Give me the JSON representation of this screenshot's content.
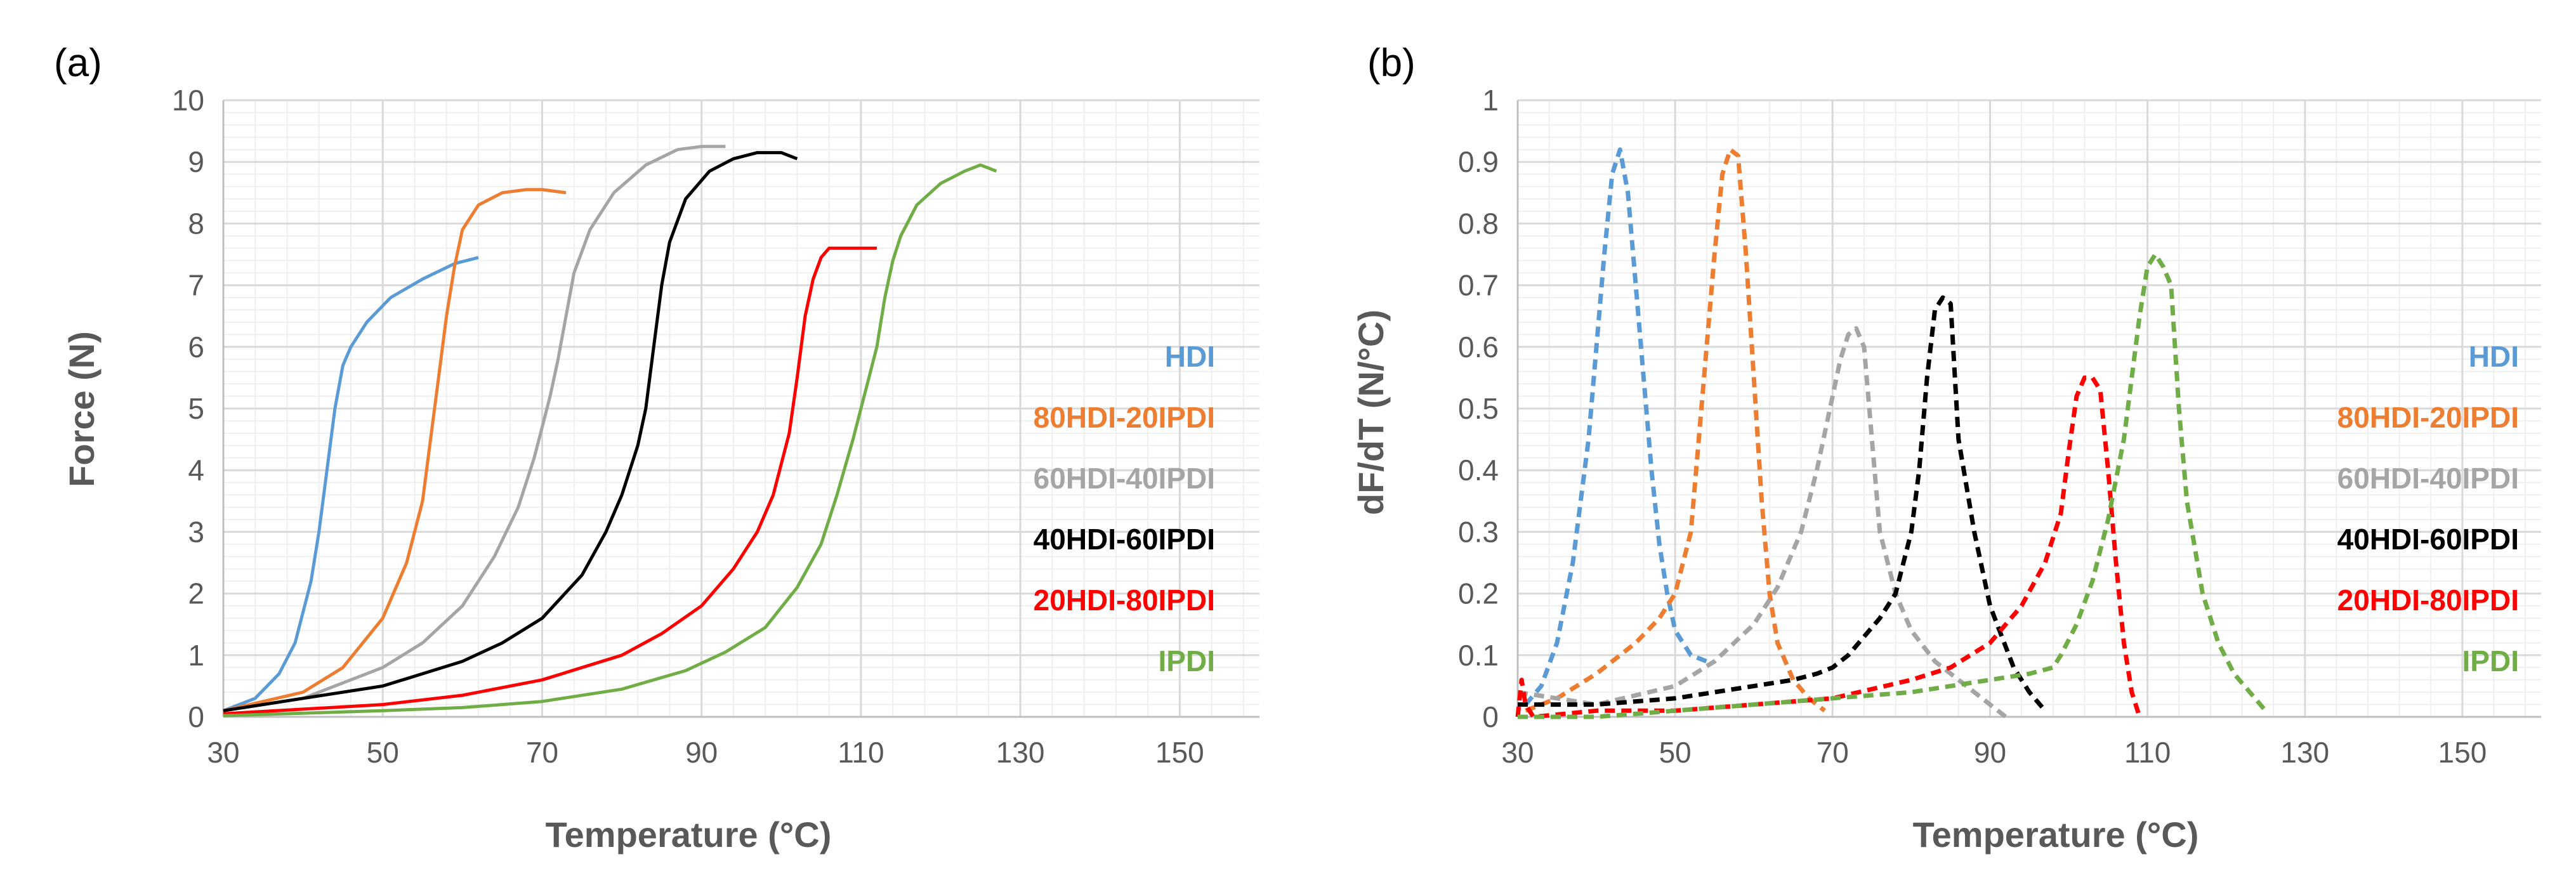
{
  "figure": {
    "panel_a_label": "(a)",
    "panel_b_label": "(b)"
  },
  "colors": {
    "HDI": "#5B9BD5",
    "80HDI-20IPDI": "#ED7D31",
    "60HDI-40IPDI": "#A5A5A5",
    "40HDI-60IPDI": "#000000",
    "20HDI-80IPDI": "#FF0000",
    "IPDI": "#70AD47"
  },
  "chart_data": [
    {
      "type": "line",
      "panel": "(a)",
      "title": "",
      "xlabel": "Temperature (°C)",
      "ylabel": "Force (N)",
      "xlim": [
        30,
        160
      ],
      "ylim": [
        0,
        10
      ],
      "xticks": [
        30,
        50,
        70,
        90,
        110,
        130,
        150
      ],
      "yticks": [
        0,
        1,
        2,
        3,
        4,
        5,
        6,
        7,
        8,
        9,
        10
      ],
      "grid": true,
      "line_style": "solid",
      "legend_position": "right",
      "series": [
        {
          "name": "HDI",
          "x": [
            30,
            34,
            37,
            39,
            41,
            42,
            43,
            44,
            45,
            46,
            48,
            51,
            55,
            59,
            62
          ],
          "y": [
            0.1,
            0.3,
            0.7,
            1.2,
            2.2,
            3.0,
            4.0,
            5.0,
            5.7,
            6.0,
            6.4,
            6.8,
            7.1,
            7.35,
            7.45
          ]
        },
        {
          "name": "80HDI-20IPDI",
          "x": [
            30,
            40,
            45,
            50,
            53,
            55,
            56,
            57,
            58,
            59,
            60,
            62,
            65,
            68,
            70,
            73
          ],
          "y": [
            0.1,
            0.4,
            0.8,
            1.6,
            2.5,
            3.5,
            4.5,
            5.5,
            6.5,
            7.3,
            7.9,
            8.3,
            8.5,
            8.55,
            8.55,
            8.5
          ]
        },
        {
          "name": "60HDI-40IPDI",
          "x": [
            30,
            40,
            50,
            55,
            60,
            64,
            67,
            69,
            70,
            71,
            72,
            73,
            74,
            76,
            79,
            83,
            87,
            90,
            93
          ],
          "y": [
            0.1,
            0.3,
            0.8,
            1.2,
            1.8,
            2.6,
            3.4,
            4.2,
            4.7,
            5.2,
            5.8,
            6.5,
            7.2,
            7.9,
            8.5,
            8.95,
            9.2,
            9.25,
            9.25
          ]
        },
        {
          "name": "40HDI-60IPDI",
          "x": [
            30,
            40,
            50,
            55,
            60,
            65,
            70,
            75,
            78,
            80,
            82,
            83,
            84,
            85,
            86,
            88,
            91,
            94,
            97,
            100,
            102
          ],
          "y": [
            0.1,
            0.3,
            0.5,
            0.7,
            0.9,
            1.2,
            1.6,
            2.3,
            3.0,
            3.6,
            4.4,
            5.0,
            6.0,
            7.0,
            7.7,
            8.4,
            8.85,
            9.05,
            9.15,
            9.15,
            9.05
          ]
        },
        {
          "name": "20HDI-80IPDI",
          "x": [
            30,
            50,
            60,
            70,
            80,
            85,
            90,
            94,
            97,
            99,
            100,
            101,
            102,
            103,
            104,
            105,
            106,
            107,
            109,
            112
          ],
          "y": [
            0.05,
            0.2,
            0.35,
            0.6,
            1.0,
            1.35,
            1.8,
            2.4,
            3.0,
            3.6,
            4.1,
            4.6,
            5.5,
            6.5,
            7.1,
            7.45,
            7.6,
            7.6,
            7.6,
            7.6
          ]
        },
        {
          "name": "IPDI",
          "x": [
            30,
            50,
            60,
            70,
            80,
            88,
            93,
            98,
            102,
            105,
            107,
            109,
            110,
            111,
            112,
            113,
            114,
            115,
            117,
            120,
            123,
            125,
            127
          ],
          "y": [
            0.02,
            0.1,
            0.15,
            0.25,
            0.45,
            0.75,
            1.05,
            1.45,
            2.1,
            2.8,
            3.6,
            4.5,
            5.0,
            5.5,
            6.0,
            6.8,
            7.4,
            7.8,
            8.3,
            8.65,
            8.85,
            8.95,
            8.85
          ]
        }
      ],
      "legend": [
        "HDI",
        "80HDI-20IPDI",
        "60HDI-40IPDI",
        "40HDI-60IPDI",
        "20HDI-80IPDI",
        "IPDI"
      ]
    },
    {
      "type": "line",
      "panel": "(b)",
      "title": "",
      "xlabel": "Temperature (°C)",
      "ylabel": "dF/dT (N/°C)",
      "xlim": [
        30,
        160
      ],
      "ylim": [
        0,
        1
      ],
      "xticks": [
        30,
        50,
        70,
        90,
        110,
        130,
        150
      ],
      "yticks": [
        0,
        0.1,
        0.2,
        0.3,
        0.4,
        0.5,
        0.6,
        0.7,
        0.8,
        0.9,
        1
      ],
      "grid": true,
      "line_style": "dashed",
      "legend_position": "right",
      "series": [
        {
          "name": "HDI",
          "x": [
            31,
            33,
            35,
            37,
            39,
            40,
            41,
            42,
            43,
            44,
            45,
            46,
            47,
            48,
            49,
            50,
            52,
            54
          ],
          "y": [
            0.02,
            0.05,
            0.12,
            0.25,
            0.45,
            0.6,
            0.75,
            0.88,
            0.92,
            0.85,
            0.7,
            0.55,
            0.4,
            0.28,
            0.2,
            0.14,
            0.1,
            0.09
          ]
        },
        {
          "name": "80HDI-20IPDI",
          "x": [
            31,
            35,
            40,
            45,
            48,
            50,
            52,
            53,
            54,
            55,
            56,
            57,
            58,
            59,
            60,
            61,
            62,
            63,
            65,
            67,
            69
          ],
          "y": [
            0.01,
            0.03,
            0.07,
            0.12,
            0.16,
            0.2,
            0.3,
            0.45,
            0.6,
            0.75,
            0.88,
            0.92,
            0.91,
            0.75,
            0.55,
            0.35,
            0.2,
            0.12,
            0.06,
            0.03,
            0.01
          ]
        },
        {
          "name": "60HDI-40IPDI",
          "x": [
            30,
            40,
            50,
            55,
            60,
            63,
            66,
            68,
            70,
            71,
            72,
            73,
            74,
            75,
            76,
            78,
            80,
            83,
            86,
            89,
            92
          ],
          "y": [
            0.04,
            0.02,
            0.05,
            0.09,
            0.15,
            0.21,
            0.3,
            0.4,
            0.52,
            0.58,
            0.62,
            0.63,
            0.6,
            0.45,
            0.3,
            0.2,
            0.14,
            0.09,
            0.06,
            0.03,
            0.0
          ]
        },
        {
          "name": "40HDI-60IPDI",
          "x": [
            30,
            40,
            50,
            55,
            60,
            65,
            68,
            70,
            72,
            74,
            76,
            78,
            80,
            81,
            82,
            83,
            84,
            85,
            86,
            88,
            90,
            93,
            95,
            97
          ],
          "y": [
            0.02,
            0.02,
            0.03,
            0.04,
            0.05,
            0.06,
            0.07,
            0.08,
            0.1,
            0.13,
            0.16,
            0.2,
            0.3,
            0.4,
            0.55,
            0.66,
            0.68,
            0.67,
            0.45,
            0.3,
            0.18,
            0.08,
            0.04,
            0.01
          ]
        },
        {
          "name": "20HDI-80IPDI",
          "x": [
            30,
            30.5,
            31,
            32,
            40,
            50,
            60,
            70,
            80,
            85,
            90,
            94,
            97,
            99,
            100,
            101,
            102,
            103,
            104,
            105,
            106,
            107,
            108,
            109
          ],
          "y": [
            0.0,
            0.06,
            0.02,
            0.0,
            0.01,
            0.01,
            0.02,
            0.03,
            0.06,
            0.08,
            0.12,
            0.18,
            0.25,
            0.33,
            0.43,
            0.52,
            0.55,
            0.55,
            0.53,
            0.4,
            0.25,
            0.12,
            0.04,
            0.0
          ]
        },
        {
          "name": "IPDI",
          "x": [
            30,
            40,
            50,
            60,
            70,
            80,
            90,
            95,
            98,
            99,
            101,
            103,
            105,
            107,
            108,
            109,
            110,
            111,
            112,
            113,
            114,
            115,
            117,
            119,
            121,
            123,
            125
          ],
          "y": [
            0.0,
            0.0,
            0.01,
            0.02,
            0.03,
            0.04,
            0.06,
            0.07,
            0.08,
            0.1,
            0.15,
            0.22,
            0.32,
            0.45,
            0.55,
            0.65,
            0.73,
            0.75,
            0.73,
            0.7,
            0.5,
            0.35,
            0.2,
            0.12,
            0.07,
            0.04,
            0.01
          ]
        }
      ],
      "legend": [
        "HDI",
        "80HDI-20IPDI",
        "60HDI-40IPDI",
        "40HDI-60IPDI",
        "20HDI-80IPDI",
        "IPDI"
      ]
    }
  ]
}
